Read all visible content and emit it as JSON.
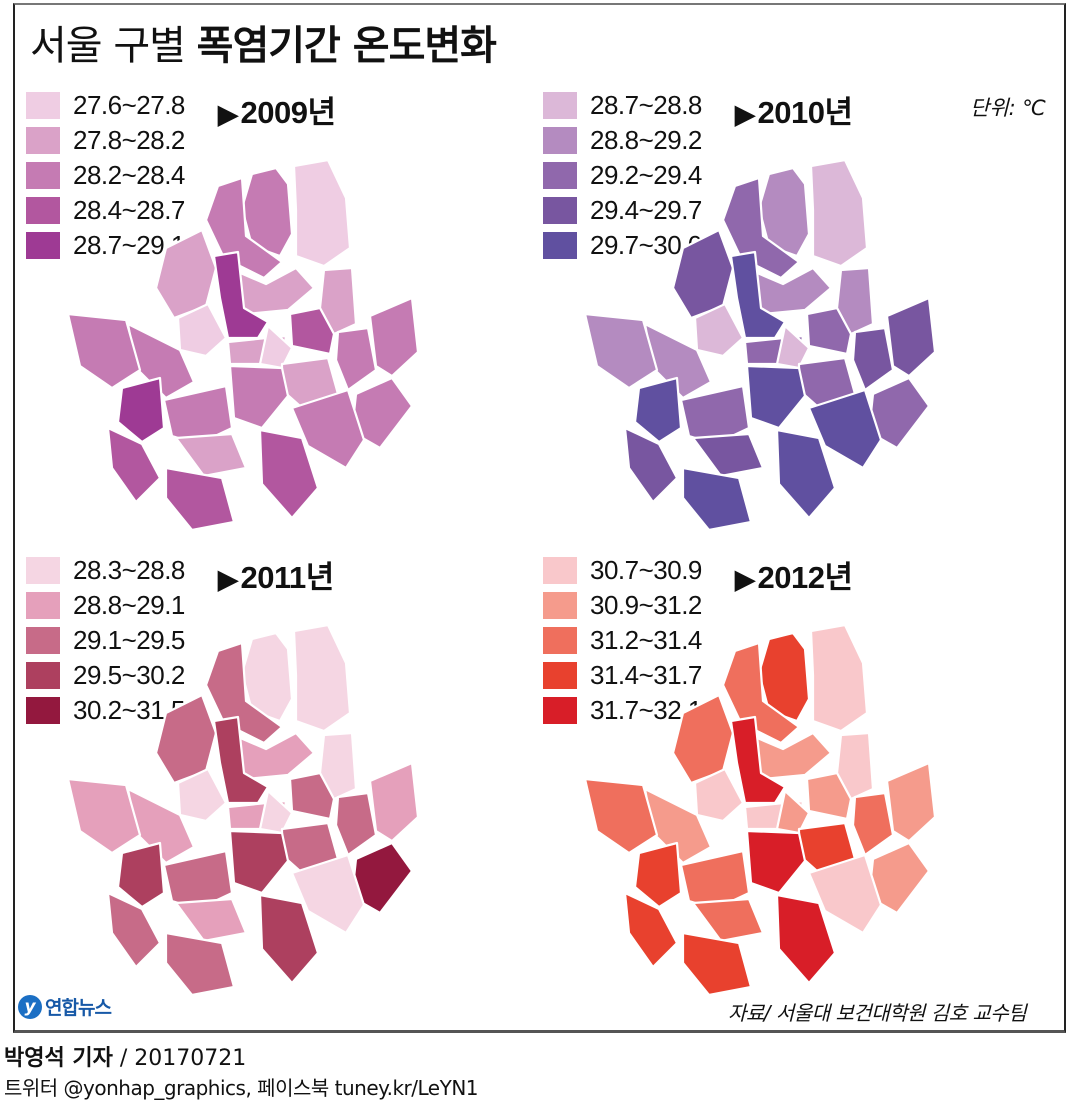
{
  "header": {
    "title_light": "서울 구별 ",
    "title_bold": "폭염기간 온도변화",
    "unit": "단위: ℃"
  },
  "panels": [
    {
      "year_label": "2009년",
      "legend": [
        {
          "label": "27.6~27.8",
          "color": "#efcde3"
        },
        {
          "label": "27.8~28.2",
          "color": "#daa2c8"
        },
        {
          "label": "28.2~28.4",
          "color": "#c57bb3"
        },
        {
          "label": "28.4~28.7",
          "color": "#b2579f"
        },
        {
          "label": "28.7~29.1",
          "color": "#9e3a94"
        }
      ],
      "district_classes": [
        2,
        0,
        2,
        1,
        1,
        0,
        4,
        1,
        3,
        1,
        2,
        2,
        0,
        1,
        2,
        2,
        2,
        2,
        2,
        3,
        2,
        4,
        3,
        1,
        3
      ]
    },
    {
      "year_label": "2010년",
      "legend": [
        {
          "label": "28.7~28.8",
          "color": "#dcb8d8"
        },
        {
          "label": "28.8~29.2",
          "color": "#b48bc0"
        },
        {
          "label": "29.2~29.4",
          "color": "#9068ac"
        },
        {
          "label": "29.4~29.7",
          "color": "#7856a0"
        },
        {
          "label": "29.7~30.0",
          "color": "#6050a0"
        }
      ],
      "district_classes": [
        1,
        0,
        2,
        3,
        1,
        0,
        4,
        1,
        2,
        2,
        1,
        1,
        0,
        2,
        3,
        3,
        2,
        4,
        4,
        4,
        2,
        4,
        3,
        3,
        4
      ]
    },
    {
      "year_label": "2011년",
      "legend": [
        {
          "label": "28.3~28.8",
          "color": "#f5d6e3"
        },
        {
          "label": "28.8~29.1",
          "color": "#e5a0bb"
        },
        {
          "label": "29.1~29.5",
          "color": "#c76b88"
        },
        {
          "label": "29.5~30.2",
          "color": "#ad405f"
        },
        {
          "label": "30.2~31.5",
          "color": "#93183e"
        }
      ],
      "district_classes": [
        0,
        0,
        2,
        2,
        1,
        0,
        3,
        0,
        2,
        1,
        1,
        1,
        0,
        2,
        2,
        1,
        4,
        3,
        0,
        3,
        2,
        3,
        2,
        1,
        2
      ]
    },
    {
      "year_label": "2012년",
      "legend": [
        {
          "label": "30.7~30.9",
          "color": "#f9c8cb"
        },
        {
          "label": "30.9~31.2",
          "color": "#f59b8c"
        },
        {
          "label": "31.2~31.4",
          "color": "#ef6f5d"
        },
        {
          "label": "31.4~31.7",
          "color": "#e8412e"
        },
        {
          "label": "31.7~32.1",
          "color": "#d81e28"
        }
      ],
      "district_classes": [
        3,
        0,
        2,
        2,
        1,
        0,
        4,
        0,
        1,
        0,
        1,
        2,
        1,
        3,
        2,
        1,
        1,
        4,
        0,
        4,
        2,
        3,
        3,
        2,
        3
      ]
    }
  ],
  "footer": {
    "logo_mark": "y",
    "logo_text": "연합뉴스",
    "source": "자료/ 서울대 보건대학원 김호 교수팀",
    "reporter": "박영석 기자",
    "date": " / 20170721",
    "social": "트위터 @yonhap_graphics, 페이스북 tuney.kr/LeYN1"
  },
  "chart_data": {
    "type": "heatmap",
    "title": "서울 구별 폭염기간 온도변화",
    "unit": "℃",
    "source": "서울대 보건대학원 김호 교수팀",
    "maps": [
      {
        "year": "2009",
        "classes": [
          "27.6~27.8",
          "27.8~28.2",
          "28.2~28.4",
          "28.4~28.7",
          "28.7~29.1"
        ]
      },
      {
        "year": "2010",
        "classes": [
          "28.7~28.8",
          "28.8~29.2",
          "29.2~29.4",
          "29.4~29.7",
          "29.7~30.0"
        ]
      },
      {
        "year": "2011",
        "classes": [
          "28.3~28.8",
          "28.8~29.1",
          "29.1~29.5",
          "29.5~30.2",
          "30.2~31.5"
        ]
      },
      {
        "year": "2012",
        "classes": [
          "30.7~30.9",
          "30.9~31.2",
          "31.2~31.4",
          "31.4~31.7",
          "31.7~32.1"
        ]
      }
    ]
  }
}
